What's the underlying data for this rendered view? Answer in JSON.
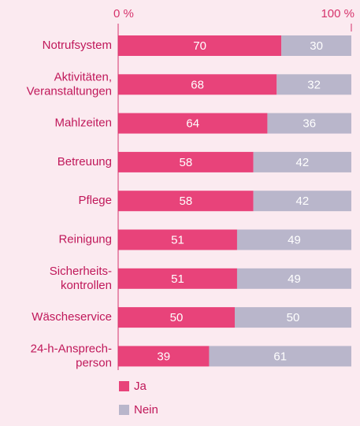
{
  "chart_data": {
    "type": "stacked_bar_horizontal",
    "categories": [
      "Notrufsystem",
      "Aktivitäten,\nVeranstaltungen",
      "Mahlzeiten",
      "Betreuung",
      "Pflege",
      "Reinigung",
      "Sicherheits-\nkontrollen",
      "Wäscheservice",
      "24-h-Ansprech-\nperson"
    ],
    "series": [
      {
        "name": "Ja",
        "color": "#e8437a",
        "values": [
          70,
          68,
          64,
          58,
          58,
          51,
          51,
          50,
          39
        ]
      },
      {
        "name": "Nein",
        "color": "#b9b6cb",
        "values": [
          30,
          32,
          36,
          42,
          42,
          49,
          49,
          50,
          61
        ]
      }
    ],
    "xlim": [
      0,
      100
    ],
    "xticks": [
      {
        "value": 0,
        "label": "0 %"
      },
      {
        "value": 100,
        "label": "100 %"
      }
    ],
    "legend": "bottom-left"
  }
}
